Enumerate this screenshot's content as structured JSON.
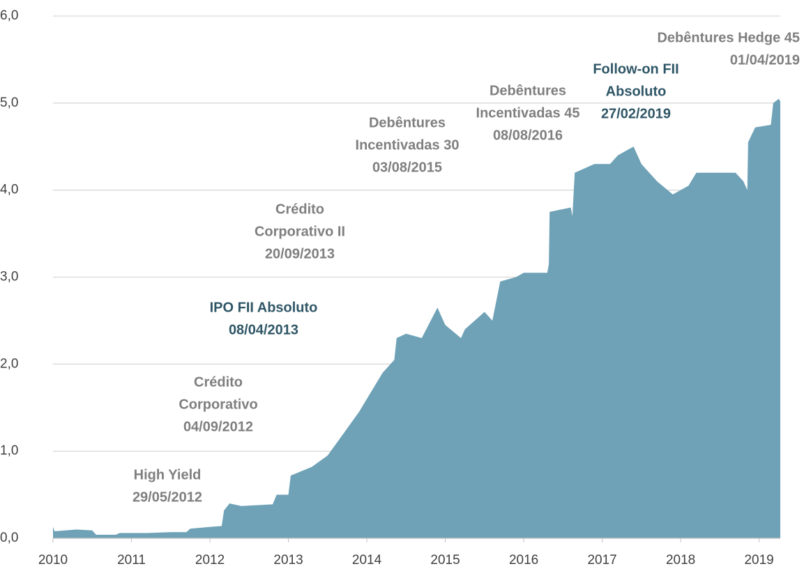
{
  "chart_data": {
    "type": "area",
    "x": [
      2010.0,
      2010.02,
      2010.3,
      2010.5,
      2010.55,
      2010.8,
      2010.85,
      2011.2,
      2011.5,
      2011.7,
      2011.75,
      2012.0,
      2012.15,
      2012.18,
      2012.25,
      2012.4,
      2012.8,
      2012.85,
      2013.0,
      2013.03,
      2013.3,
      2013.5,
      2013.7,
      2013.9,
      2014.0,
      2014.2,
      2014.35,
      2014.38,
      2014.5,
      2014.7,
      2014.9,
      2015.0,
      2015.2,
      2015.25,
      2015.5,
      2015.6,
      2015.7,
      2015.9,
      2016.0,
      2016.3,
      2016.32,
      2016.33,
      2016.6,
      2016.62,
      2016.65,
      2016.9,
      2017.1,
      2017.2,
      2017.4,
      2017.5,
      2017.7,
      2017.9,
      2018.1,
      2018.2,
      2018.4,
      2018.7,
      2018.8,
      2018.85,
      2018.86,
      2018.95,
      2019.15,
      2019.18,
      2019.25,
      2019.27
    ],
    "values": [
      0.13,
      0.08,
      0.1,
      0.09,
      0.04,
      0.04,
      0.06,
      0.06,
      0.07,
      0.07,
      0.11,
      0.13,
      0.14,
      0.32,
      0.4,
      0.37,
      0.39,
      0.5,
      0.5,
      0.72,
      0.82,
      0.95,
      1.2,
      1.45,
      1.6,
      1.9,
      2.05,
      2.3,
      2.35,
      2.3,
      2.65,
      2.45,
      2.3,
      2.4,
      2.6,
      2.5,
      2.95,
      3.0,
      3.05,
      3.05,
      3.15,
      3.75,
      3.8,
      3.7,
      4.2,
      4.3,
      4.3,
      4.4,
      4.5,
      4.3,
      4.1,
      3.95,
      4.05,
      4.2,
      4.2,
      4.2,
      4.1,
      4.0,
      4.55,
      4.72,
      4.75,
      5.0,
      5.05,
      5.02
    ],
    "color": "#6fa2b7",
    "xlim": [
      2010,
      2019.27
    ],
    "xticks": [
      2010,
      2011,
      2012,
      2013,
      2014,
      2015,
      2016,
      2017,
      2018,
      2019
    ],
    "ylim": [
      0,
      6
    ],
    "yticks": [
      {
        "value": 0,
        "label": "0,0"
      },
      {
        "value": 1,
        "label": "1,0"
      },
      {
        "value": 2,
        "label": "2,0"
      },
      {
        "value": 3,
        "label": "3,0"
      },
      {
        "value": 4,
        "label": "4,0"
      },
      {
        "value": 5,
        "label": "5,0"
      },
      {
        "value": 6,
        "label": "6,0"
      }
    ],
    "grid": true,
    "annotations": [
      {
        "lines": [
          "High Yield",
          "29/05/2012"
        ],
        "color": "#7f7f7f"
      },
      {
        "lines": [
          "Crédito",
          "Corporativo",
          "04/09/2012"
        ],
        "color": "#7f7f7f"
      },
      {
        "lines": [
          "IPO FII Absoluto",
          "08/04/2013"
        ],
        "color": "#2f5666"
      },
      {
        "lines": [
          "Crédito",
          "Corporativo II",
          "20/09/2013"
        ],
        "color": "#7f7f7f"
      },
      {
        "lines": [
          "Debêntures",
          "Incentivadas 30",
          "03/08/2015"
        ],
        "color": "#7f7f7f"
      },
      {
        "lines": [
          "Debêntures",
          "Incentivadas 45",
          "08/08/2016"
        ],
        "color": "#7f7f7f"
      },
      {
        "lines": [
          "Follow-on FII",
          "Absoluto",
          "27/02/2019"
        ],
        "color": "#2f5666"
      },
      {
        "lines": [
          "Debêntures Hedge 45",
          "01/04/2019"
        ],
        "color": "#7f7f7f"
      }
    ]
  }
}
